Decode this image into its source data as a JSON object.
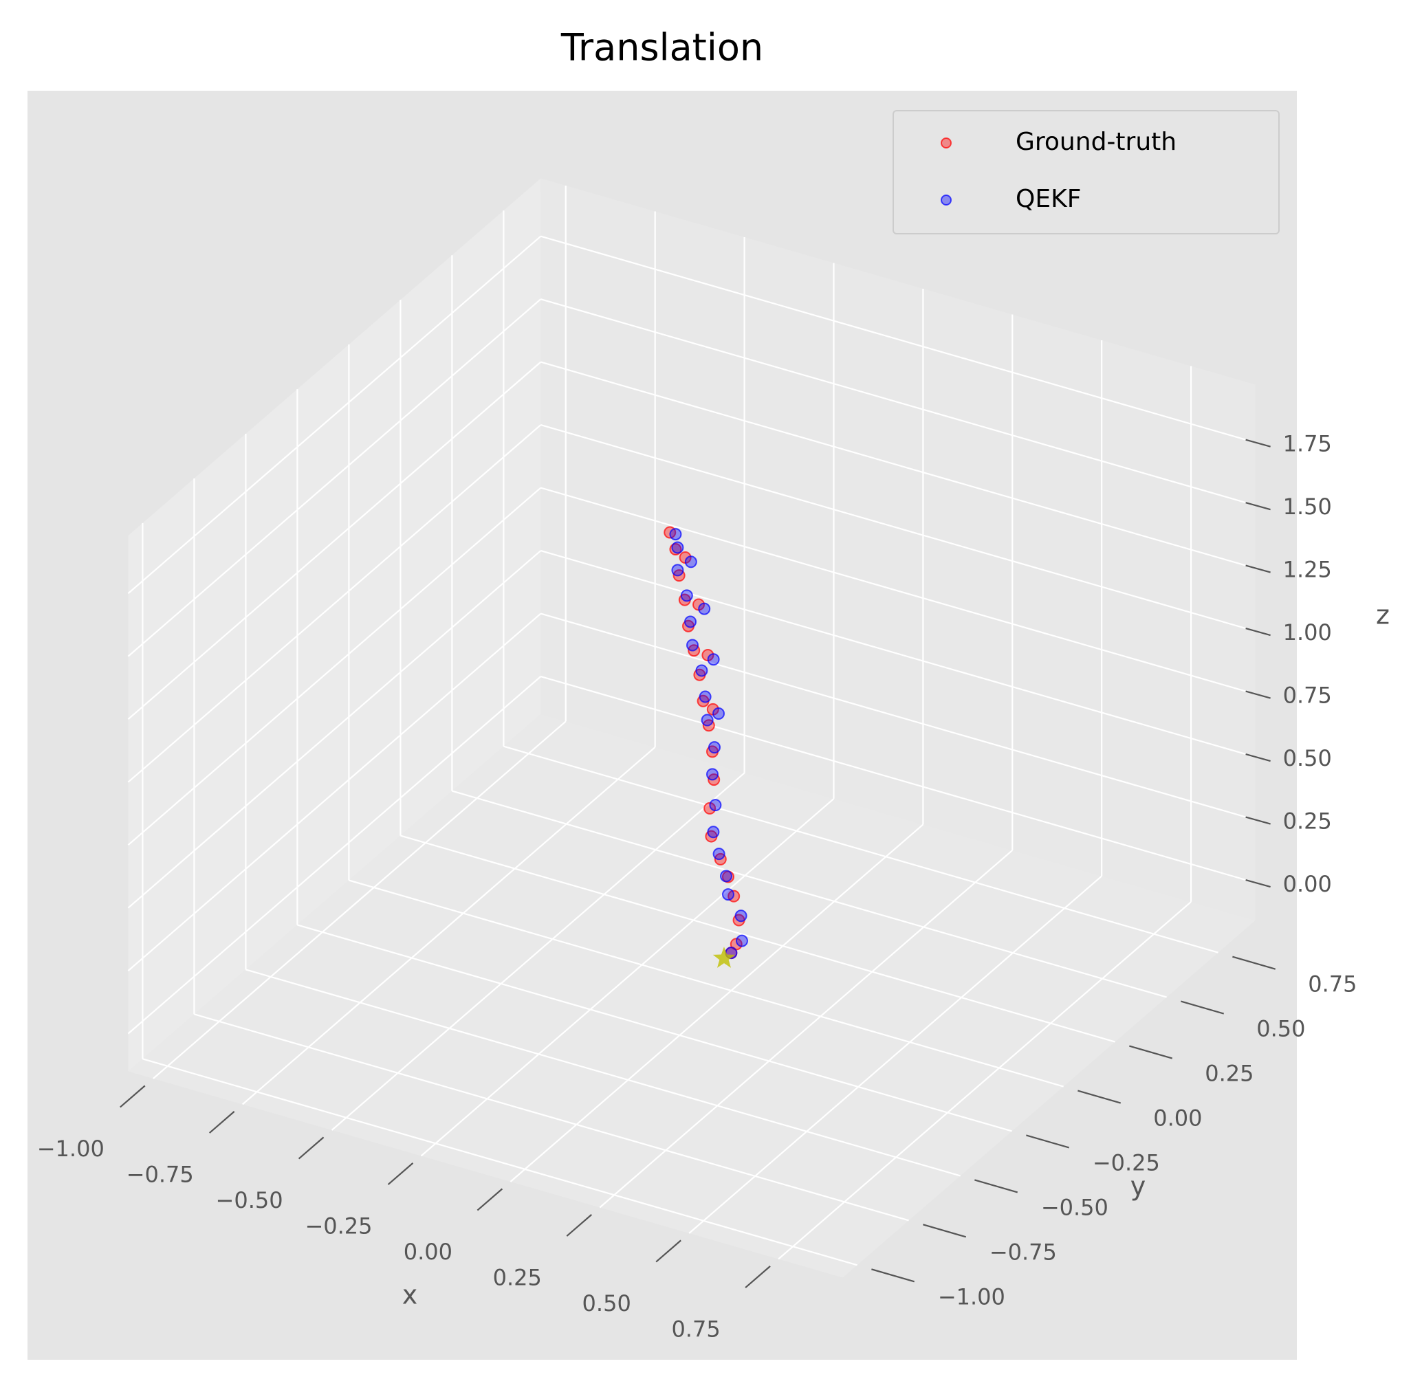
{
  "chart_data": {
    "type": "scatter3d",
    "title": "Translation",
    "xlabel": "x",
    "ylabel": "y",
    "zlabel": "z",
    "xlim": [
      -1.07,
      0.93
    ],
    "ylim": [
      -1.07,
      0.93
    ],
    "zlim": [
      -0.15,
      1.98
    ],
    "xticks": [
      {
        "value": -1,
        "label": "−1.00"
      },
      {
        "value": -0.75,
        "label": "−0.75"
      },
      {
        "value": -0.5,
        "label": "−0.50"
      },
      {
        "value": -0.25,
        "label": "−0.25"
      },
      {
        "value": 0,
        "label": "0.00"
      },
      0.25,
      {
        "value": 0.5,
        "label": "0.50"
      },
      0.75
    ],
    "yticks": [
      {
        "value": -1,
        "label": "−1.00"
      },
      {
        "value": -0.75,
        "label": "−0.75"
      },
      {
        "value": -0.5,
        "label": "−0.50"
      },
      {
        "value": -0.25,
        "label": "−0.25"
      },
      {
        "value": 0,
        "label": "0.00"
      },
      0.25,
      {
        "value": 0.5,
        "label": "0.50"
      },
      0.75
    ],
    "zticks": [
      {
        "value": 0,
        "label": "0.00"
      },
      0.25,
      {
        "value": 0.5,
        "label": "0.50"
      },
      0.75,
      {
        "value": 1,
        "label": "1.00"
      },
      1.25,
      {
        "value": 1.5,
        "label": "1.50"
      },
      1.75
    ],
    "grid": true,
    "legend": "upper right",
    "series": [
      {
        "name": "Ground-truth",
        "color": "#ff0000",
        "x": [
          0,
          0.02,
          0.01,
          -0.01,
          -0.02,
          -0.03,
          -0.05,
          -0.06,
          -0.06,
          -0.07,
          -0.08,
          -0.09,
          -0.1,
          -0.11,
          -0.12,
          -0.13,
          -0.14,
          -0.15,
          -0.16,
          -0.14,
          -0.12,
          -0.1,
          -0.08
        ],
        "y": [
          0,
          -0.01,
          0.02,
          0.03,
          0.02,
          0,
          -0.01,
          0,
          0.02,
          0.03,
          0.03,
          0.02,
          0.02,
          0.01,
          0,
          0,
          -0.01,
          -0.01,
          -0.02,
          0.02,
          0.05,
          0.06,
          0.05
        ],
        "z": [
          0,
          0.05,
          0.12,
          0.2,
          0.28,
          0.36,
          0.45,
          0.55,
          0.65,
          0.75,
          0.85,
          0.95,
          1.05,
          1.15,
          1.25,
          1.35,
          1.45,
          1.55,
          1.62,
          1.5,
          1.3,
          1.1,
          0.9
        ]
      },
      {
        "name": "QEKF",
        "color": "#0000ff",
        "x": [
          0,
          0.03,
          0.01,
          -0.02,
          -0.02,
          -0.04,
          -0.05,
          -0.05,
          -0.07,
          -0.07,
          -0.09,
          -0.09,
          -0.1,
          -0.12,
          -0.12,
          -0.13,
          -0.15,
          -0.15,
          -0.15,
          -0.13,
          -0.11,
          -0.09,
          -0.07
        ],
        "y": [
          0,
          0,
          0.03,
          0.02,
          0.01,
          0.01,
          0,
          0.01,
          0.03,
          0.04,
          0.04,
          0.03,
          0.03,
          0.02,
          0.01,
          0.01,
          0,
          0,
          -0.01,
          0.03,
          0.06,
          0.07,
          0.06
        ],
        "z": [
          0,
          0.06,
          0.13,
          0.21,
          0.29,
          0.37,
          0.46,
          0.56,
          0.66,
          0.76,
          0.86,
          0.96,
          1.06,
          1.16,
          1.26,
          1.36,
          1.46,
          1.55,
          1.61,
          1.48,
          1.28,
          1.08,
          0.88
        ]
      }
    ],
    "start_point": {
      "x": -0.02,
      "y": 0,
      "z": -0.03,
      "color": "#bfbf00"
    }
  }
}
